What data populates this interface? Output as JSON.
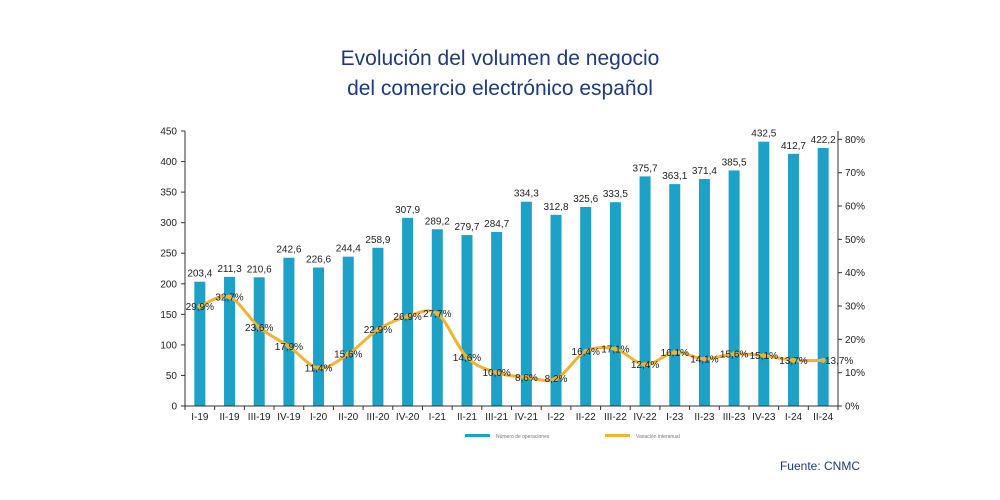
{
  "chart_data": {
    "type": "bar",
    "title_lines": [
      "Evolución del volumen de negocio",
      "del comercio electrónico español"
    ],
    "categories": [
      "I-19",
      "II-19",
      "III-19",
      "IV-19",
      "I-20",
      "II-20",
      "III-20",
      "IV-20",
      "I-21",
      "II-21",
      "III-21",
      "IV-21",
      "I-22",
      "II-22",
      "III-22",
      "IV-22",
      "I-23",
      "II-23",
      "III-23",
      "IV-23",
      "I-24",
      "II-24"
    ],
    "series": [
      {
        "name": "Número de operaciones",
        "type": "bar",
        "axis": "left",
        "color": "#1ea1c6",
        "values": [
          203.4,
          211.3,
          210.6,
          242.6,
          226.6,
          244.4,
          258.9,
          307.9,
          289.2,
          279.7,
          284.7,
          334.3,
          312.8,
          325.6,
          333.5,
          375.7,
          363.1,
          371.4,
          385.5,
          432.5,
          412.7,
          422.2
        ],
        "labels": [
          "203,4",
          "211,3",
          "210,6",
          "242,6",
          "226,6",
          "244,4",
          "258,9",
          "307,9",
          "289,2",
          "279,7",
          "284,7",
          "334,3",
          "312,8",
          "325,6",
          "333,5",
          "375,7",
          "363,1",
          "371,4",
          "385,5",
          "432,5",
          "412,7",
          "422,2"
        ]
      },
      {
        "name": "Variación interanual",
        "type": "line",
        "axis": "right",
        "color": "#f2b233",
        "values": [
          29.9,
          32.7,
          23.6,
          17.9,
          11.4,
          15.6,
          22.9,
          26.9,
          27.7,
          14.6,
          10.0,
          8.6,
          8.2,
          16.4,
          17.1,
          12.4,
          16.1,
          14.1,
          15.6,
          15.1,
          13.7,
          13.7
        ],
        "labels": [
          "29,9%",
          "32,7%",
          "23,6%",
          "17,9%",
          "11,4%",
          "15,6%",
          "22,9%",
          "26,9%",
          "27,7%",
          "14,6%",
          "10,0%",
          "8,6%",
          "8,2%",
          "16,4%",
          "17,1%",
          "12,4%",
          "16,1%",
          "14,1%",
          "15,6%",
          "15,1%",
          "13,7%",
          "13,7%"
        ]
      }
    ],
    "left_axis": {
      "ylim": [
        0,
        450
      ],
      "ticks": [
        "0",
        "50",
        "100",
        "150",
        "200",
        "250",
        "300",
        "350",
        "400",
        "450"
      ]
    },
    "right_axis": {
      "ylim": [
        0,
        82.5
      ],
      "ticks": [
        "0%",
        "10%",
        "20%",
        "30%",
        "40%",
        "50%",
        "60%",
        "70%",
        "80%"
      ]
    },
    "grid": false,
    "legend_position": "bottom"
  },
  "source": "Fuente: CNMC"
}
